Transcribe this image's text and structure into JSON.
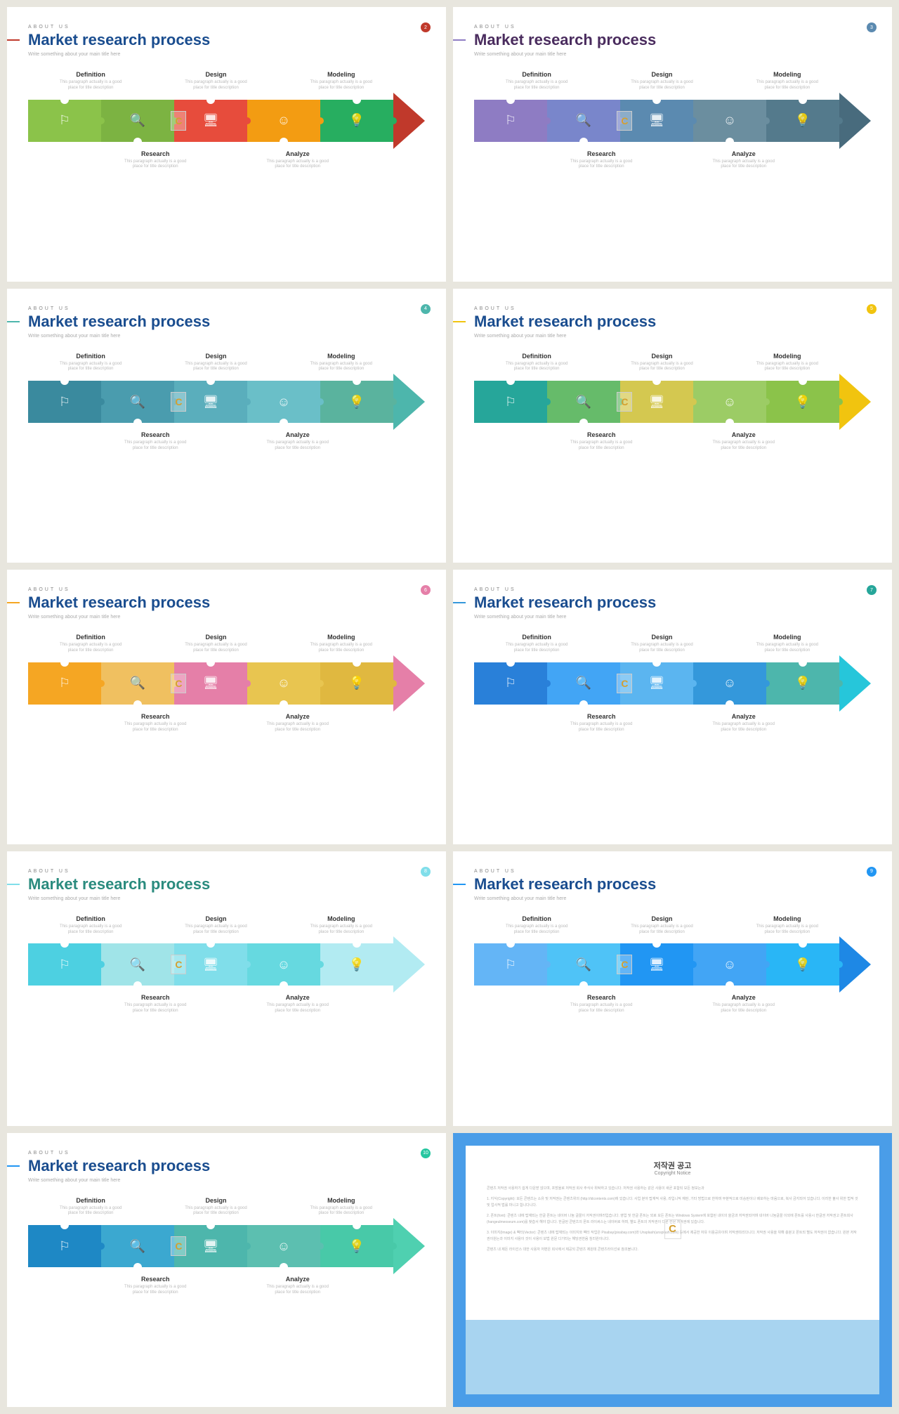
{
  "common": {
    "eyebrow": "ABOUT US",
    "title": "Market research process",
    "subtitle": "Write something about your main title here",
    "step_desc": "This paragraph actually is a good place for title description",
    "steps_top": [
      "Definition",
      "Design",
      "Modeling"
    ],
    "steps_bottom": [
      "Research",
      "Analyze"
    ],
    "icons": [
      "⚐",
      "🔍",
      "🖥",
      "☺",
      "💡"
    ]
  },
  "slides": [
    {
      "badge_num": "2",
      "badge_color": "#c0392b",
      "title_color": "#1a4d8f",
      "line_color": "#c0392b",
      "puzzle_colors": [
        "#8bc34a",
        "#7cb342",
        "#e74c3c",
        "#f39c12",
        "#27ae60"
      ],
      "arrow_color": "#c0392b"
    },
    {
      "badge_num": "3",
      "badge_color": "#5b8ab0",
      "title_color": "#4a2c5e",
      "line_color": "#8e7cc3",
      "puzzle_colors": [
        "#8e7cc3",
        "#7986cb",
        "#5b8ab0",
        "#6b8e9f",
        "#547a8c"
      ],
      "arrow_color": "#486b7d"
    },
    {
      "badge_num": "4",
      "badge_color": "#4db6ac",
      "title_color": "#1a4d8f",
      "line_color": "#4db6ac",
      "puzzle_colors": [
        "#3a8a9e",
        "#4a9cae",
        "#5aaebc",
        "#6abfc8",
        "#5ab39e"
      ],
      "arrow_color": "#4db6ac"
    },
    {
      "badge_num": "5",
      "badge_color": "#f1c40f",
      "title_color": "#1a4d8f",
      "line_color": "#f1c40f",
      "puzzle_colors": [
        "#26a69a",
        "#66bb6a",
        "#d4c850",
        "#9ccc65",
        "#8bc34a"
      ],
      "arrow_color": "#f1c40f"
    },
    {
      "badge_num": "6",
      "badge_color": "#e57fa8",
      "title_color": "#1a4d8f",
      "line_color": "#f5a623",
      "puzzle_colors": [
        "#f5a623",
        "#f0c060",
        "#e57fa8",
        "#e8c550",
        "#e0b840"
      ],
      "arrow_color": "#e57fa8"
    },
    {
      "badge_num": "7",
      "badge_color": "#26a69a",
      "title_color": "#1a4d8f",
      "line_color": "#3498db",
      "puzzle_colors": [
        "#2980d9",
        "#42a5f5",
        "#5bb5f0",
        "#3498db",
        "#4db6ac"
      ],
      "arrow_color": "#26c6da"
    },
    {
      "badge_num": "8",
      "badge_color": "#80deea",
      "title_color": "#2a8b7e",
      "line_color": "#80deea",
      "puzzle_colors": [
        "#4dd0e1",
        "#a0e4e8",
        "#80deea",
        "#66d9e0",
        "#b2ebf2"
      ],
      "arrow_color": "#b2ebf2"
    },
    {
      "badge_num": "9",
      "badge_color": "#2196f3",
      "title_color": "#1a4d8f",
      "line_color": "#2196f3",
      "puzzle_colors": [
        "#64b5f6",
        "#4fc3f7",
        "#2196f3",
        "#42a5f5",
        "#29b6f6"
      ],
      "arrow_color": "#1e88e5"
    },
    {
      "badge_num": "10",
      "badge_color": "#26c6a0",
      "title_color": "#1a4d8f",
      "line_color": "#2196f3",
      "puzzle_colors": [
        "#1e88c5",
        "#3ba8d0",
        "#4db6ac",
        "#5cbfb0",
        "#48c9a8"
      ],
      "arrow_color": "#4fd0b0"
    }
  ],
  "copyright": {
    "title": "저작권 공고",
    "subtitle": "Copyright Notice",
    "body": [
      "콘텐츠 저작권 사용하기 쉽게 다운받 않으며, 프방울로 저작권 회사 주식사 위탁하고 있습니다. 저작권 사용하는 같은 사용이 새곧 포함되 모든 정보는과",
      "1. 지식(Copyright): 모든 콘텐츠는 소유 및 저작권는 콘텐츠위의 (http://idcontents.com)에 있습니다. 사업 분야 탑재적 사용, 라입니적 재판, 기타 방법으로 한하며 부분적으로 미승된이나 배포하는 마음으로, 복사 금지되어 있습니다. 이러한 불사 위한 법적 것 및 업사적 법률 마니고 합니다니다.",
      "2. 폰트(font): 콘텐츠 내에 탑재되는 한글 폰트는 네이버 나눔 글꼴이 저작권이며러입습니다. 영업 및 한글 폰트는 외로 모든 폰트는 Windows System에 포함된 내이의 을금과 저작권되어며 네이버 나눔글꼴 이외에 폰트를 사용시 한글권 저작권고 폰트회사(hangeulmeoseum.com)를 찾습서 해야 합니다. 한글된 콘텐츠의 폰트 라이써스는 네이버로 하며, 별도 폰트의 저작권이 다른 칸은 저작권에 있습니다.",
      "3. 이미지(Image) & 벡터(Vector): 콘텐츠 내에 탑재되는 이미지와 벡터 작업은 Pixabay(pixabay.com)와 Unsplash(unsplash.com) 등에서 제공한 자유 이용공유이며 저작권띠리다니다. 저작권 사용을 위해 충분고 폰트되 별도 저작권이 없습니다. 원본 저작권이원는과 이미지 사용이 것이 사용이 보법 원문 다기타는 해당권한음 침리원이니다."
    ],
    "footer": "콘텐츠 내 제돈 라이선스 대한 사용자 저편은 회사에서 제공되 콘텐츠 제원데 콘텐츠라이선로 참조볼니다."
  }
}
